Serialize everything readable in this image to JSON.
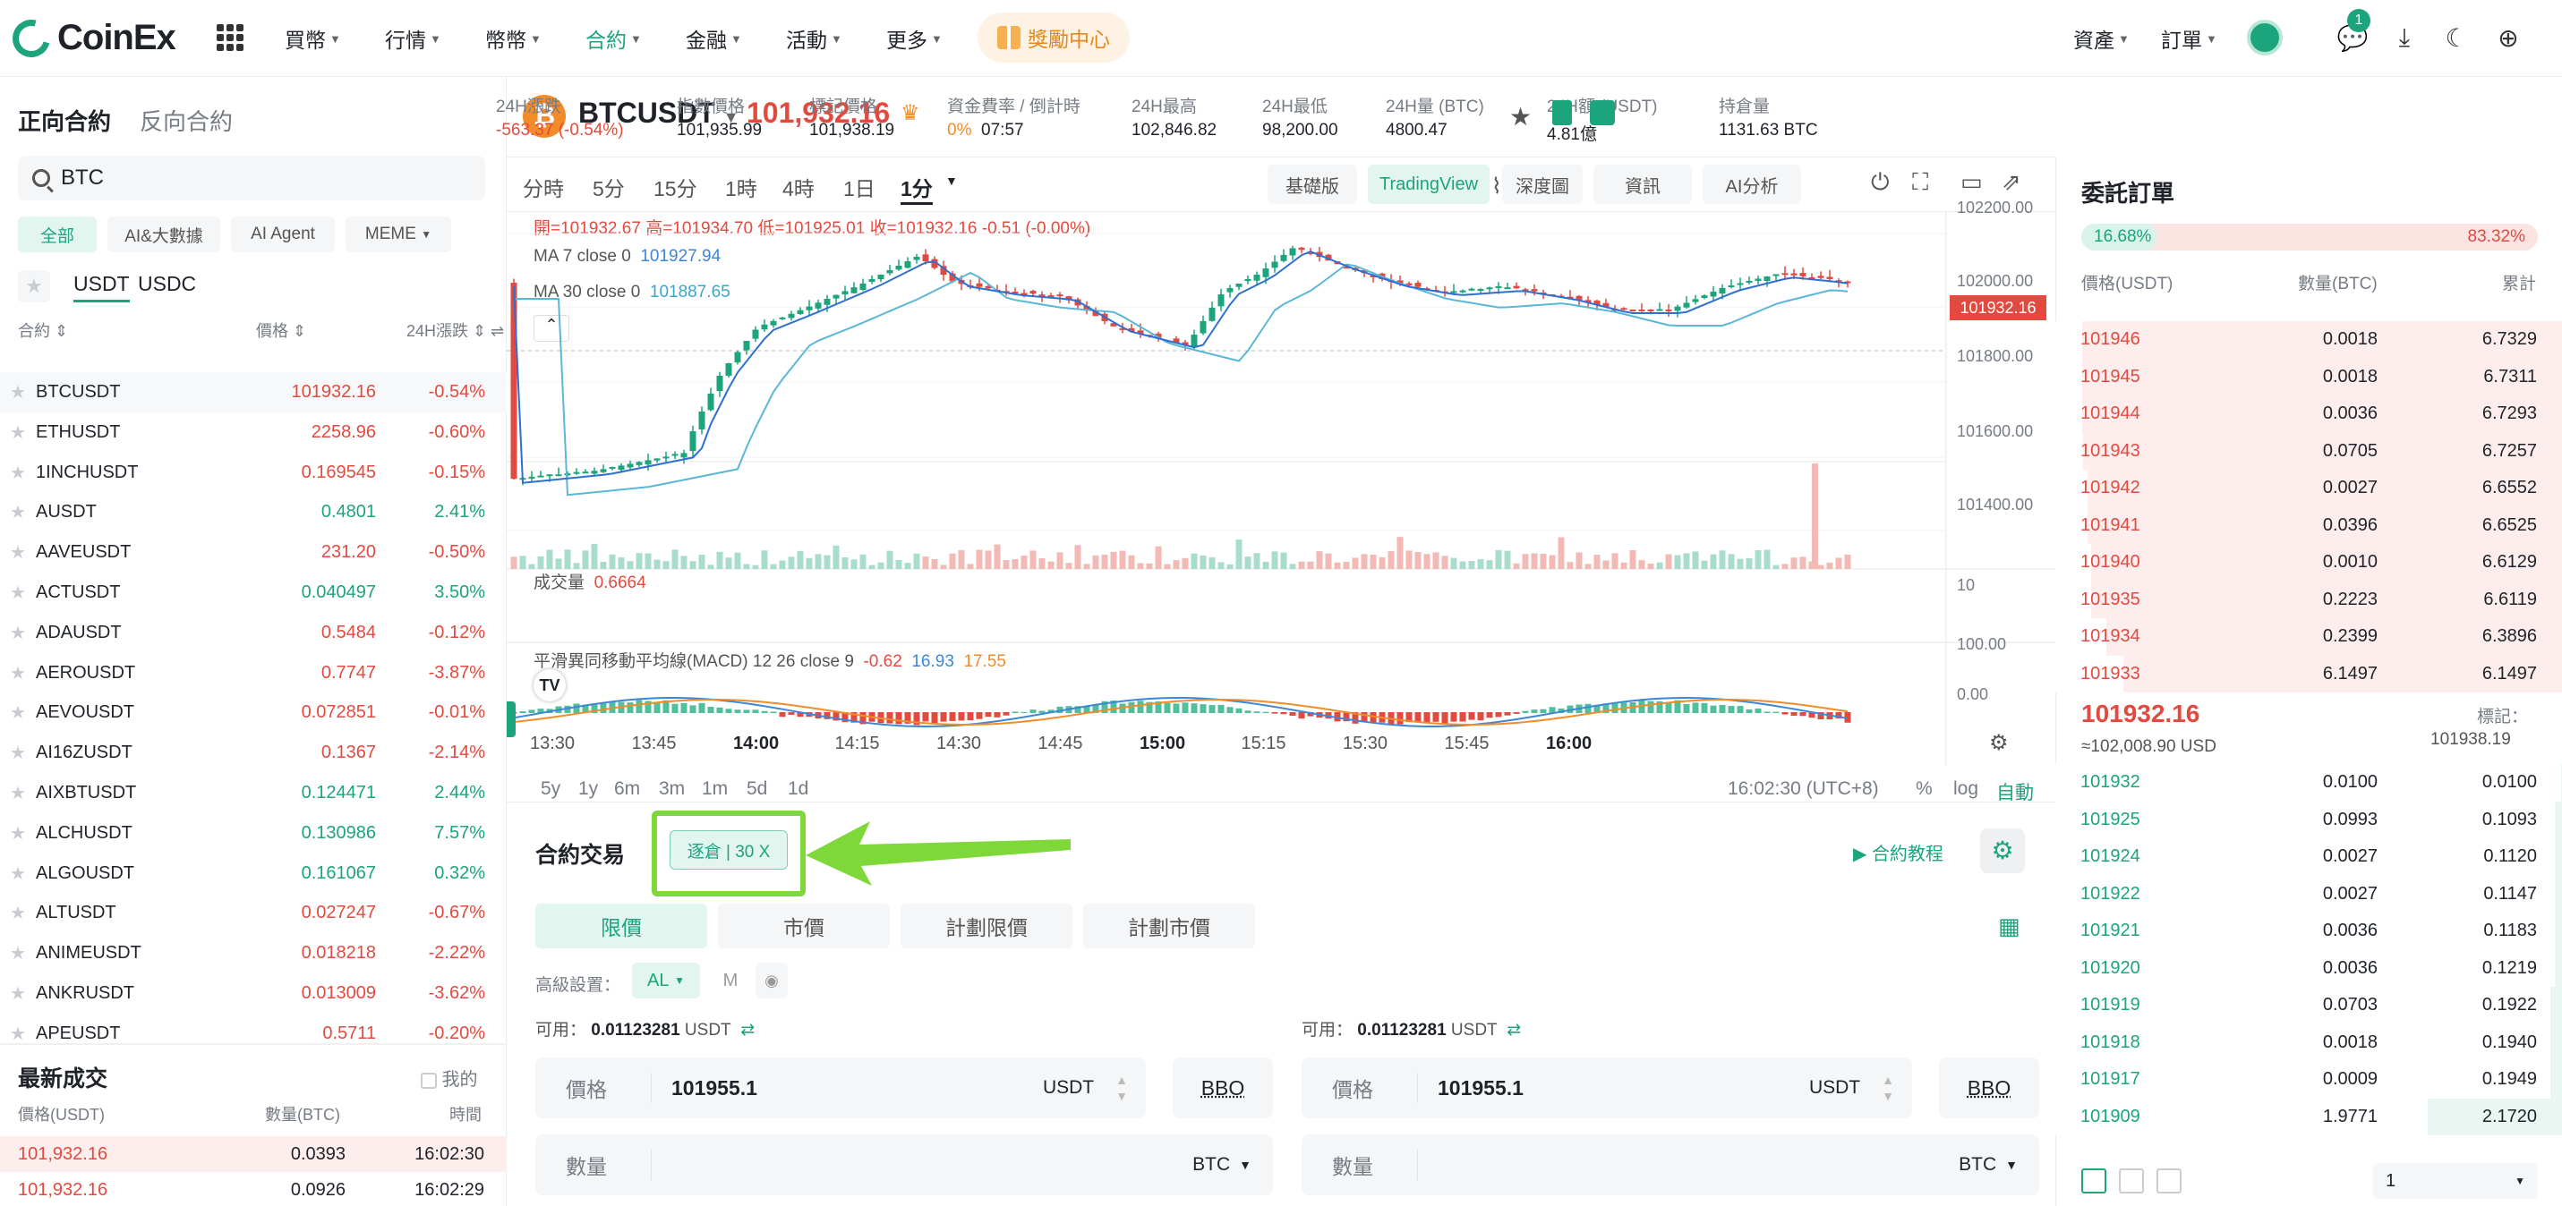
{
  "nav": {
    "logo": "CoinEx",
    "items": [
      "買幣",
      "行情",
      "幣幣",
      "合約",
      "金融",
      "活動",
      "更多"
    ],
    "active": "合約",
    "reward": "獎勵中心",
    "assets": "資產",
    "orders": "訂單",
    "notif_count": "1"
  },
  "left": {
    "tab_forward": "正向合約",
    "tab_reverse": "反向合約",
    "search": "BTC",
    "chips": [
      "全部",
      "AI&大數據",
      "AI Agent",
      "MEME"
    ],
    "cur_usdt": "USDT",
    "cur_usdc": "USDC",
    "headers": {
      "contract": "合約",
      "price": "價格",
      "change": "24H漲跌"
    },
    "markets": [
      {
        "sym": "BTCUSDT",
        "price": "101932.16",
        "change": "-0.54%",
        "up": false
      },
      {
        "sym": "ETHUSDT",
        "price": "2258.96",
        "change": "-0.60%",
        "up": false
      },
      {
        "sym": "1INCHUSDT",
        "price": "0.169545",
        "change": "-0.15%",
        "up": false
      },
      {
        "sym": "AUSDT",
        "price": "0.4801",
        "change": "2.41%",
        "up": true
      },
      {
        "sym": "AAVEUSDT",
        "price": "231.20",
        "change": "-0.50%",
        "up": false
      },
      {
        "sym": "ACTUSDT",
        "price": "0.040497",
        "change": "3.50%",
        "up": true
      },
      {
        "sym": "ADAUSDT",
        "price": "0.5484",
        "change": "-0.12%",
        "up": false
      },
      {
        "sym": "AEROUSDT",
        "price": "0.7747",
        "change": "-3.87%",
        "up": false
      },
      {
        "sym": "AEVOUSDT",
        "price": "0.072851",
        "change": "-0.01%",
        "up": false
      },
      {
        "sym": "AI16ZUSDT",
        "price": "0.1367",
        "change": "-2.14%",
        "up": false
      },
      {
        "sym": "AIXBTUSDT",
        "price": "0.124471",
        "change": "2.44%",
        "up": true
      },
      {
        "sym": "ALCHUSDT",
        "price": "0.130986",
        "change": "7.57%",
        "up": true
      },
      {
        "sym": "ALGOUSDT",
        "price": "0.161067",
        "change": "0.32%",
        "up": true
      },
      {
        "sym": "ALTUSDT",
        "price": "0.027247",
        "change": "-0.67%",
        "up": false
      },
      {
        "sym": "ANIMEUSDT",
        "price": "0.018218",
        "change": "-2.22%",
        "up": false
      },
      {
        "sym": "ANKRUSDT",
        "price": "0.013009",
        "change": "-3.62%",
        "up": false
      },
      {
        "sym": "APEUSDT",
        "price": "0.5711",
        "change": "-0.20%",
        "up": false
      }
    ],
    "trades_title": "最新成交",
    "trades_mine": "我的",
    "trades_headers": [
      "價格(USDT)",
      "數量(BTC)",
      "時間"
    ],
    "trades": [
      {
        "price": "101,932.16",
        "qty": "0.0393",
        "time": "16:02:30"
      },
      {
        "price": "101,932.16",
        "qty": "0.0926",
        "time": "16:02:29"
      }
    ]
  },
  "ticker": {
    "symbol": "BTCUSDT",
    "price": "101,932.16",
    "stats": [
      {
        "label": "24H漲跌",
        "value": "-563.37 (-0.54%)",
        "cls": "red"
      },
      {
        "label": "指數價格",
        "value": "101,935.99",
        "cls": ""
      },
      {
        "label": "標記價格",
        "value": "101,938.19",
        "cls": ""
      },
      {
        "label": "資金費率 / 倒計時",
        "value": "0%  07:57",
        "cls": "fr"
      },
      {
        "label": "24H最高",
        "value": "102,846.82",
        "cls": ""
      },
      {
        "label": "24H最低",
        "value": "98,200.00",
        "cls": ""
      },
      {
        "label": "24H量 (BTC)",
        "value": "4800.47",
        "cls": ""
      },
      {
        "label": "24H額 (USDT)",
        "value": "4.81億",
        "cls": ""
      },
      {
        "label": "持倉量",
        "value": "1131.63 BTC",
        "cls": ""
      }
    ]
  },
  "chart": {
    "timeframes": [
      "分時",
      "5分",
      "15分",
      "1時",
      "4時",
      "1日",
      "1分"
    ],
    "views": [
      "基礎版",
      "TradingView",
      "深度圖",
      "資訊",
      "AI分析"
    ],
    "ohlc": "開=101932.67 高=101934.70 低=101925.01 收=101932.16 -0.51 (-0.00%)",
    "ma7_label": "MA 7 close 0",
    "ma7": "101927.94",
    "ma30_label": "MA 30 close 0",
    "ma30": "101887.65",
    "vol_label": "成交量",
    "vol": "0.6664",
    "macd_label": "平滑異同移動平均線(MACD) 12 26 close 9",
    "macd_vals": [
      "-0.62",
      "16.93",
      "17.55"
    ],
    "yticks": [
      "102200.00",
      "102000.00",
      "101800.00",
      "101600.00",
      "101400.00"
    ],
    "last": "101932.16",
    "vol_tick": "10",
    "macd_ticks": [
      "100.00",
      "0.00"
    ],
    "xticks": [
      "13:30",
      "13:45",
      "14:00",
      "14:15",
      "14:30",
      "14:45",
      "15:00",
      "15:15",
      "15:30",
      "15:45",
      "16:00"
    ],
    "ranges": [
      "5y",
      "1y",
      "6m",
      "3m",
      "1m",
      "5d",
      "1d"
    ],
    "clock": "16:02:30 (UTC+8)",
    "pct": "%",
    "log": "log",
    "auto": "自動"
  },
  "trade": {
    "title": "合約交易",
    "mode": "逐倉 | 30 X",
    "tutorial": "合約教程",
    "tabs": [
      "限價",
      "市價",
      "計劃限價",
      "計劃市價"
    ],
    "adv": "高級設置：",
    "al": "AL",
    "m": "M",
    "avail_label": "可用：",
    "avail": "0.01123281",
    "avail_unit": "USDT",
    "price_label": "價格",
    "price": "101955.1",
    "price_unit": "USDT",
    "bbo": "BBO",
    "qty_label": "數量",
    "qty_unit": "BTC"
  },
  "orderbook": {
    "title": "委託訂單",
    "buy_pct": "16.68%",
    "sell_pct": "83.32%",
    "headers": [
      "價格(USDT)",
      "數量(BTC)",
      "累計"
    ],
    "asks": [
      [
        "101946",
        "0.0018",
        "6.7329"
      ],
      [
        "101945",
        "0.0018",
        "6.7311"
      ],
      [
        "101944",
        "0.0036",
        "6.7293"
      ],
      [
        "101943",
        "0.0705",
        "6.7257"
      ],
      [
        "101942",
        "0.0027",
        "6.6552"
      ],
      [
        "101941",
        "0.0396",
        "6.6525"
      ],
      [
        "101940",
        "0.0010",
        "6.6129"
      ],
      [
        "101935",
        "0.2223",
        "6.6119"
      ],
      [
        "101934",
        "0.2399",
        "6.3896"
      ],
      [
        "101933",
        "6.1497",
        "6.1497"
      ]
    ],
    "mid": "101932.16",
    "mid_usd": "≈102,008.90  USD",
    "mark_label": "標記：",
    "mark": "101938.19",
    "bids": [
      [
        "101932",
        "0.0100",
        "0.0100"
      ],
      [
        "101925",
        "0.0993",
        "0.1093"
      ],
      [
        "101924",
        "0.0027",
        "0.1120"
      ],
      [
        "101922",
        "0.0027",
        "0.1147"
      ],
      [
        "101921",
        "0.0036",
        "0.1183"
      ],
      [
        "101920",
        "0.0036",
        "0.1219"
      ],
      [
        "101919",
        "0.0703",
        "0.1922"
      ],
      [
        "101918",
        "0.0018",
        "0.1940"
      ],
      [
        "101917",
        "0.0009",
        "0.1949"
      ],
      [
        "101909",
        "1.9771",
        "2.1720"
      ]
    ],
    "depth": "1"
  }
}
